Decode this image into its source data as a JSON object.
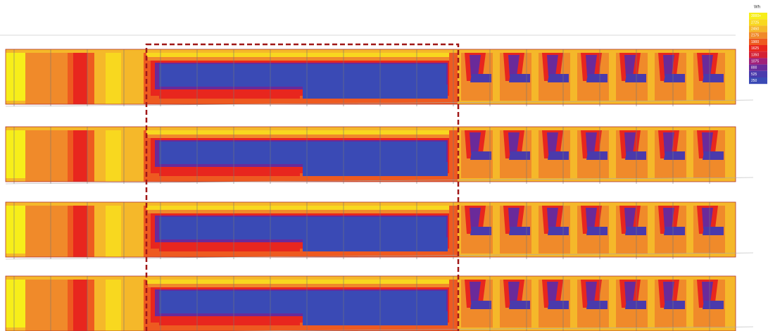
{
  "legend": {
    "title": "Wh",
    "entries": [
      {
        "label": "3000+",
        "color": "#f7ee1a"
      },
      {
        "label": "2725",
        "color": "#f8d81f"
      },
      {
        "label": "2450",
        "color": "#f5b82a"
      },
      {
        "label": "2175",
        "color": "#f08a2a"
      },
      {
        "label": "1900",
        "color": "#ee5a20"
      },
      {
        "label": "1625",
        "color": "#e8261e"
      },
      {
        "label": "1350",
        "color": "#d42034"
      },
      {
        "label": "1075",
        "color": "#a0207a"
      },
      {
        "label": "800",
        "color": "#6a2a9a"
      },
      {
        "label": "525",
        "color": "#4a3aac"
      },
      {
        "label": "250",
        "color": "#3a4ab5"
      }
    ]
  }
}
